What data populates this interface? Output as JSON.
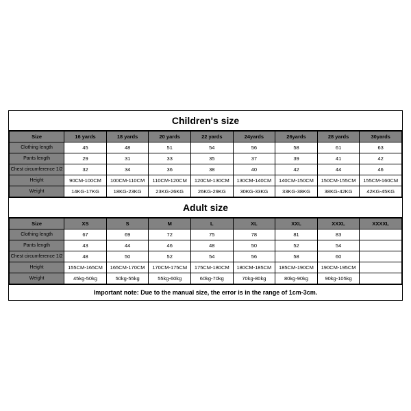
{
  "children": {
    "title": "Children's size",
    "headers": [
      "Size",
      "16 yards",
      "18 yards",
      "20 yards",
      "22 yards",
      "24yards",
      "26yards",
      "28 yards",
      "30yards"
    ],
    "rows": [
      {
        "label": "Clothing length",
        "cells": [
          "45",
          "48",
          "51",
          "54",
          "56",
          "58",
          "61",
          "63"
        ]
      },
      {
        "label": "Pants length",
        "cells": [
          "29",
          "31",
          "33",
          "35",
          "37",
          "39",
          "41",
          "42"
        ]
      },
      {
        "label": "Chest circumference 1/2",
        "cells": [
          "32",
          "34",
          "36",
          "38",
          "40",
          "42",
          "44",
          "46"
        ]
      },
      {
        "label": "Height",
        "cells": [
          "90CM-100CM",
          "100CM-110CM",
          "110CM-120CM",
          "120CM-130CM",
          "130CM-140CM",
          "140CM-150CM",
          "150CM-155CM",
          "155CM-160CM"
        ]
      },
      {
        "label": "Weight",
        "cells": [
          "14KG-17KG",
          "18KG-23KG",
          "23KG-26KG",
          "26KG-29KG",
          "30KG-33KG",
          "33KG-38KG",
          "38KG-42KG",
          "42KG-45KG"
        ]
      }
    ]
  },
  "adult": {
    "title": "Adult size",
    "headers": [
      "Size",
      "XS",
      "S",
      "M",
      "L",
      "XL",
      "XXL",
      "XXXL",
      "XXXXL"
    ],
    "rows": [
      {
        "label": "Clothing length",
        "cells": [
          "67",
          "69",
          "72",
          "75",
          "78",
          "81",
          "83",
          ""
        ]
      },
      {
        "label": "Pants length",
        "cells": [
          "43",
          "44",
          "46",
          "48",
          "50",
          "52",
          "54",
          ""
        ]
      },
      {
        "label": "Chest circumference 1/2",
        "cells": [
          "48",
          "50",
          "52",
          "54",
          "56",
          "58",
          "60",
          ""
        ]
      },
      {
        "label": "Height",
        "cells": [
          "155CM-165CM",
          "165CM-170CM",
          "170CM-175CM",
          "175CM-180CM",
          "180CM-185CM",
          "185CM-190CM",
          "190CM-195CM",
          ""
        ]
      },
      {
        "label": "Weight",
        "cells": [
          "45kg-50kg",
          "50kg-55kg",
          "55kg-60kg",
          "60kg-70kg",
          "70kg-80kg",
          "80kg-90kg",
          "90kg-105kg",
          ""
        ]
      }
    ]
  },
  "note": "Important note: Due to the manual size, the error is in the range of 1cm-3cm.",
  "style": {
    "header_bg": "#828282",
    "border_color": "#000000",
    "background": "#ffffff",
    "title_fontsize": 14,
    "cell_fontsize": 7.5
  }
}
